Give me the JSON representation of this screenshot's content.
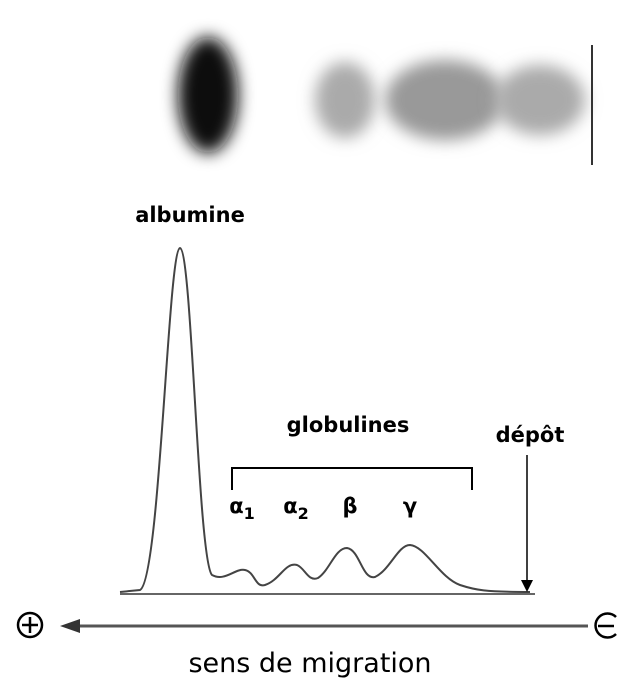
{
  "labels": {
    "albumin": "albumine",
    "globulins": "globulines",
    "deposit": "dépôt",
    "direction": "sens de migration"
  },
  "fractions": [
    {
      "symbol": "α",
      "sub": "1"
    },
    {
      "symbol": "α",
      "sub": "2"
    },
    {
      "symbol": "β"
    },
    {
      "symbol": "γ"
    }
  ]
}
